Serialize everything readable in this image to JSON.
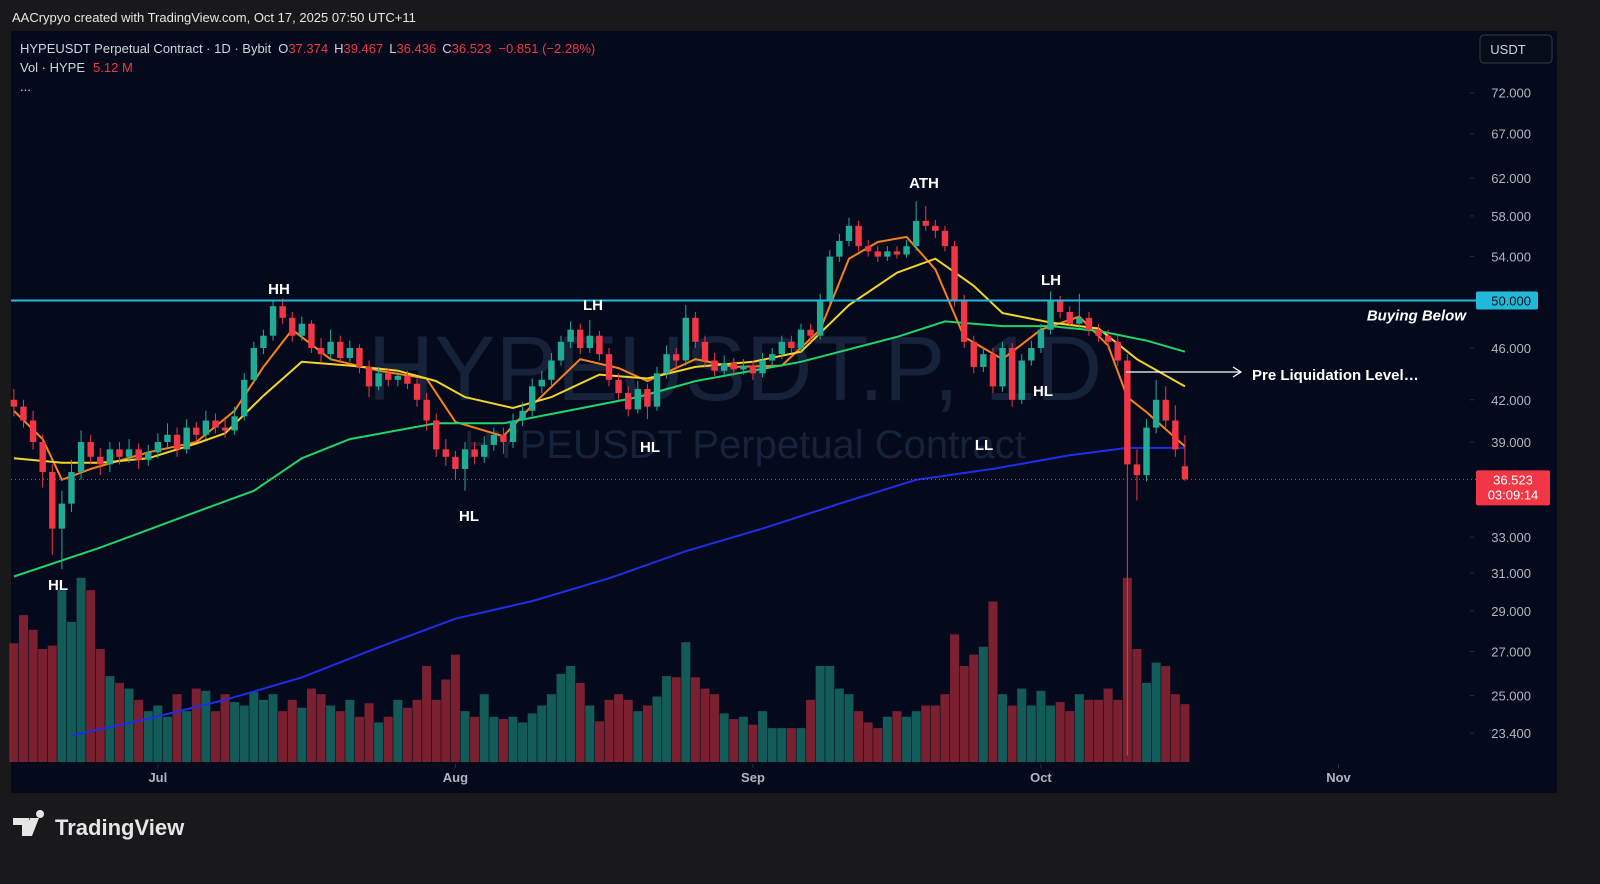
{
  "header": {
    "attribution": "AACrypyo created with TradingView.com, Oct 17, 2025 07:50 UTC+11"
  },
  "chart_data": {
    "type": "candlestick",
    "symbol": "HYPEUSDT Perpetual Contract · 1D · Bybit",
    "o_label": "O",
    "h_label": "H",
    "l_label": "L",
    "c_label": "C",
    "change": "−0.851 (−2.28%)",
    "volume_title": "Vol · HYPE",
    "volume_header": "5.12 M",
    "more": "...",
    "currency": "USDT",
    "watermark": "HYPEUSDT.P, 1D",
    "watermark_sub": "HYPEUSDT Perpetual Contract",
    "log_scale": true,
    "up_color": "#22ab94",
    "down_color": "#f23645",
    "ohlc": {
      "open": [
        42,
        41.5,
        40.5,
        39,
        37,
        33.5,
        35,
        37,
        39,
        38,
        37.5,
        38.5,
        38,
        38.5,
        37.8,
        38.3,
        39,
        39.5,
        38.5,
        40,
        39.5,
        40.5,
        40,
        39.8,
        40.8,
        43.5,
        46,
        47,
        49.5,
        48.5,
        47,
        48,
        46,
        45.5,
        46.5,
        45.2,
        46,
        44.5,
        43,
        44,
        43.5,
        43.8,
        43.2,
        42,
        40.5,
        38.5,
        38,
        37.2,
        38.5,
        38,
        38.8,
        39.5,
        39,
        40.5,
        41.2,
        43,
        43.5,
        45,
        46.5,
        47.5,
        46,
        47,
        45.5,
        43.5,
        42.5,
        41.3,
        42.8,
        41.5,
        44,
        45.5,
        45,
        48.5,
        46.5,
        45,
        44.2,
        44.8,
        44.3,
        44.6,
        44,
        45,
        45.5,
        46.5,
        46,
        47.5,
        47,
        50,
        54,
        55.5,
        57,
        55,
        54.5,
        54,
        54.5,
        54.2,
        55,
        57.5,
        57,
        56.5,
        55,
        50,
        46.5,
        44.5,
        45.5,
        43,
        46,
        42,
        45,
        46,
        47.5,
        50,
        49,
        48,
        48.5,
        47.5,
        47,
        46.5,
        45,
        37.5,
        36.8,
        40,
        42,
        40.5,
        37.374
      ],
      "high": [
        42.8,
        42,
        41.2,
        39.5,
        37.5,
        35.8,
        37.8,
        39.8,
        39.5,
        38.6,
        39,
        39,
        39.2,
        38.9,
        38.8,
        39.6,
        40.3,
        40,
        40.6,
        40.4,
        41.2,
        41,
        40.6,
        41.5,
        44,
        46.5,
        47.5,
        50,
        50.2,
        49,
        48.6,
        48.3,
        46.8,
        47.5,
        47,
        46.6,
        46.3,
        45,
        44.5,
        44.4,
        44.2,
        44.2,
        43.6,
        42.5,
        41,
        39.2,
        38.4,
        39,
        39,
        39.4,
        40,
        40,
        41,
        41.8,
        43.6,
        44.2,
        45.6,
        47,
        48.2,
        48,
        48.3,
        47.4,
        46,
        44,
        43,
        43.4,
        43.2,
        44.5,
        46.2,
        46,
        49.6,
        49,
        47,
        45.6,
        45.4,
        45.2,
        45.1,
        45,
        45.6,
        46,
        47,
        47,
        48,
        48,
        50.6,
        54.6,
        56.2,
        57.8,
        57.5,
        55.6,
        55,
        55,
        55,
        55.6,
        59.5,
        59,
        57.6,
        57,
        55.5,
        50.5,
        47,
        46,
        46,
        46.5,
        46.4,
        45.5,
        46.6,
        48,
        50.8,
        50.4,
        49.5,
        50.6,
        49,
        48,
        47.5,
        47,
        45.5,
        38.5,
        40.6,
        43.5,
        43,
        41.6,
        39.467
      ],
      "low": [
        40.8,
        40,
        38.5,
        36,
        32,
        31.2,
        34.5,
        36.5,
        37.5,
        36.8,
        37,
        37.5,
        37.6,
        37.2,
        37.4,
        37.9,
        38.6,
        38,
        38.2,
        39,
        39.2,
        39.6,
        39.3,
        39.5,
        40.5,
        43.2,
        45.5,
        46.6,
        48,
        46.5,
        46.6,
        45.6,
        44.8,
        45,
        44.8,
        44.9,
        44,
        42.2,
        42.7,
        43,
        43,
        42.8,
        41.5,
        39.8,
        38,
        37.4,
        36.5,
        35.8,
        37.5,
        37.6,
        38.4,
        38.2,
        38.6,
        40.1,
        40.8,
        42.5,
        43.1,
        44.6,
        46,
        45.5,
        45.6,
        45,
        43,
        42,
        40.8,
        41,
        40.6,
        41.2,
        43.6,
        44.4,
        44.6,
        46,
        44.5,
        43.8,
        43.8,
        43.8,
        43.9,
        43.5,
        43.7,
        44.6,
        45.1,
        45.6,
        45.7,
        46.5,
        46.7,
        49.6,
        53.5,
        55,
        54.5,
        54,
        53.5,
        53.6,
        53.8,
        53.9,
        54.6,
        56.5,
        55.8,
        54.5,
        49.5,
        46,
        44,
        44.1,
        42.5,
        42.6,
        41.5,
        41.7,
        44.6,
        45.6,
        47.1,
        48.5,
        47.5,
        47.6,
        47,
        46.5,
        46,
        44.6,
        22.5,
        35.2,
        36.4,
        39.6,
        40,
        38,
        36.436
      ],
      "close": [
        41.5,
        40.5,
        39,
        37,
        33.5,
        35,
        37,
        39,
        38,
        37.5,
        38.5,
        38,
        38.5,
        37.8,
        38.3,
        39,
        39.5,
        38.5,
        40,
        39.5,
        40.5,
        40,
        39.8,
        40.8,
        43.5,
        46,
        47,
        49.5,
        48.5,
        47,
        48,
        46,
        45.5,
        46.5,
        45.2,
        46,
        44.5,
        43,
        44,
        43.5,
        43.8,
        43.2,
        42,
        40.5,
        38.5,
        38,
        37.2,
        38.5,
        38,
        38.8,
        39.5,
        39,
        40.5,
        41.2,
        43,
        43.5,
        45,
        46.5,
        47.5,
        46,
        47,
        45.5,
        43.5,
        42.5,
        41.3,
        42.8,
        41.5,
        44,
        45.5,
        45,
        48.5,
        46.5,
        45,
        44.2,
        44.8,
        44.3,
        44.6,
        44,
        45,
        45.5,
        46.5,
        46,
        47.5,
        47,
        50,
        54,
        55.5,
        57,
        55,
        54.5,
        54,
        54.5,
        54.2,
        55,
        57.5,
        57,
        56.5,
        55,
        50,
        46.5,
        44.5,
        45.5,
        43,
        46,
        42,
        45,
        46,
        47.5,
        50,
        49,
        48,
        48.5,
        47.5,
        47,
        46.5,
        45,
        37.5,
        36.8,
        40,
        42,
        40.5,
        38.5,
        36.523
      ]
    },
    "volume": [
      10.5,
      13,
      11.7,
      10,
      10.3,
      15.2,
      12.4,
      16.3,
      15.2,
      10,
      7.6,
      7,
      6.5,
      5.5,
      4.5,
      5,
      4,
      6,
      4.5,
      6.5,
      6.3,
      4.5,
      6,
      5.3,
      5,
      6.2,
      5.5,
      6,
      4.5,
      5.5,
      4.8,
      6.5,
      6,
      5,
      4.5,
      5.5,
      4,
      5.2,
      3.5,
      4,
      5.5,
      4.8,
      5.5,
      8.5,
      5.5,
      7.3,
      9.5,
      4.5,
      4,
      6,
      4,
      3.8,
      4,
      3.5,
      4.3,
      5,
      6,
      7.8,
      8.5,
      7,
      5,
      3.6,
      5.5,
      6,
      5.5,
      4.5,
      5,
      5.8,
      7.6,
      7.5,
      10.6,
      7.5,
      6.5,
      6,
      4.3,
      3.8,
      4,
      3.3,
      4.5,
      3,
      3,
      3,
      3,
      5.5,
      8.5,
      8.5,
      6.5,
      6,
      4.5,
      3.5,
      3,
      4,
      4.5,
      4,
      4.5,
      5,
      5,
      6,
      11.3,
      8.5,
      9.5,
      10.2,
      14.2,
      6,
      5,
      6.5,
      5,
      6.3,
      5,
      5.3,
      4.5,
      6,
      5.5,
      5.5,
      6.5,
      5.5,
      16.3,
      10,
      7,
      8.8,
      8.5,
      6,
      5.12
    ],
    "vol_lim": [
      0,
      64.6
    ],
    "series": [
      {
        "color": "#f7821b",
        "x": [
          0,
          3,
          5,
          8,
          14,
          19,
          23,
          26,
          29,
          33,
          38,
          43,
          46,
          51,
          54,
          59,
          63,
          66,
          71,
          75,
          80,
          84,
          87,
          90,
          93,
          96,
          99,
          103,
          107,
          111,
          114,
          116,
          118,
          122
        ],
        "values": [
          41.2,
          39.2,
          36.5,
          37.2,
          38.3,
          39,
          41.2,
          44.5,
          47.5,
          45.1,
          44.2,
          43.6,
          40.4,
          39.4,
          41.6,
          45.1,
          44.4,
          43.4,
          45.1,
          44.5,
          44.6,
          47.5,
          53.8,
          55.4,
          55.9,
          52.8,
          46.9,
          45.1,
          47.5,
          48.6,
          46.2,
          42.2,
          41.1,
          38.7
        ]
      },
      {
        "color": "#f5d428",
        "x": [
          0,
          5,
          9,
          14,
          19,
          22,
          26,
          30,
          35,
          40,
          44,
          47,
          52,
          56,
          61,
          66,
          71,
          77,
          82,
          87,
          92,
          96,
          100,
          103,
          108,
          113,
          117,
          122
        ],
        "values": [
          37.9,
          37.6,
          37.6,
          37.9,
          38.9,
          39.6,
          42.3,
          44.9,
          44.6,
          44.2,
          43.4,
          42.2,
          41.4,
          42.2,
          43.9,
          43.6,
          44.5,
          44.9,
          45.7,
          49.6,
          52.5,
          53.8,
          51.3,
          48.9,
          48.1,
          47.6,
          45.1,
          43
        ]
      },
      {
        "color": "#1fd46a",
        "x": [
          0,
          9,
          19,
          25,
          30,
          35,
          44,
          51,
          57,
          65,
          71,
          82,
          92,
          97,
          103,
          108,
          113,
          118,
          122
        ],
        "values": [
          30.8,
          32.4,
          34.5,
          35.8,
          37.9,
          39.2,
          40.3,
          40.3,
          41.1,
          42.2,
          43.4,
          44.9,
          46.9,
          48.2,
          47.8,
          47.8,
          47.4,
          46.6,
          45.7
        ]
      },
      {
        "color": "#1c2ee8",
        "x": [
          6,
          14,
          22,
          30,
          38,
          46,
          54,
          62,
          70,
          78,
          86,
          94,
          102,
          110,
          116,
          122
        ],
        "values": [
          23.3,
          24,
          24.8,
          25.8,
          27.2,
          28.6,
          29.5,
          30.7,
          32.2,
          33.5,
          35,
          36.5,
          37.2,
          38.1,
          38.6,
          38.6
        ]
      }
    ],
    "xlim": [
      -0.3,
      151.7
    ],
    "xticks": [
      {
        "value": 15,
        "label": "Jul"
      },
      {
        "value": 46,
        "label": "Aug"
      },
      {
        "value": 77,
        "label": "Sep"
      },
      {
        "value": 107,
        "label": "Oct"
      },
      {
        "value": 138,
        "label": "Nov"
      }
    ],
    "ylim": [
      22.24,
      80.1
    ],
    "yticks": [
      {
        "value": 72,
        "label": "72.000"
      },
      {
        "value": 67,
        "label": "67.000"
      },
      {
        "value": 62,
        "label": "62.000"
      },
      {
        "value": 58,
        "label": "58.000"
      },
      {
        "value": 54,
        "label": "54.000"
      },
      {
        "value": 46,
        "label": "46.000"
      },
      {
        "value": 42,
        "label": "42.000"
      },
      {
        "value": 39,
        "label": "39.000"
      },
      {
        "value": 33,
        "label": "33.000"
      },
      {
        "value": 31,
        "label": "31.000"
      },
      {
        "value": 29,
        "label": "29.000"
      },
      {
        "value": 27,
        "label": "27.000"
      },
      {
        "value": 25,
        "label": "25.000"
      },
      {
        "value": 23.4,
        "label": "23.400"
      }
    ],
    "level": {
      "value": 50,
      "label": "50.000",
      "text": "Buying Below",
      "color": "#22b8d8"
    },
    "marker": {
      "value": 44.1,
      "text": "Pre Liquidation Level…"
    },
    "countdown": "03:09:14",
    "annotations": [
      "HL",
      "HH",
      "HL",
      "LH",
      "HL",
      "ATH",
      "LH",
      "HL",
      "LL"
    ]
  },
  "footer": {
    "brand": "TradingView"
  }
}
